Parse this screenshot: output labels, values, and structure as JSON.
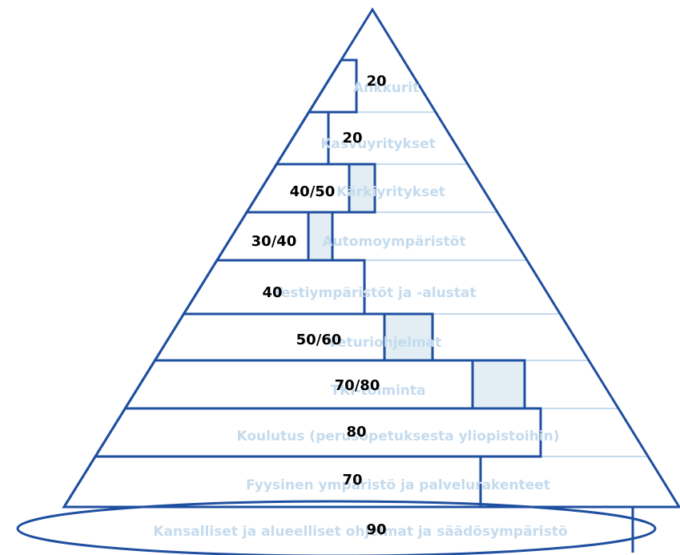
{
  "layers": [
    {
      "label": "Ankkurit",
      "value": "20"
    },
    {
      "label": "Kasvuyritykset",
      "value": "20"
    },
    {
      "label": "Kärkiyritykset",
      "value": "40/50"
    },
    {
      "label": "Automoympäristöt",
      "value": "30/40"
    },
    {
      "label": "Testiympäristöt ja -alustat",
      "value": "40"
    },
    {
      "label": "Veturiohjelmat",
      "value": "50/60"
    },
    {
      "label": "TKI-toiminta",
      "value": "70/80"
    },
    {
      "label": "Koulutus (perusopetuksesta yliopistoihin)",
      "value": "80"
    },
    {
      "label": "Fyysinen ympäristö ja palvelurakenteet",
      "value": "70"
    },
    {
      "label": "Kansalliset ja alueelliset ohjelmat ja säädösympäristö",
      "value": "90"
    }
  ]
}
